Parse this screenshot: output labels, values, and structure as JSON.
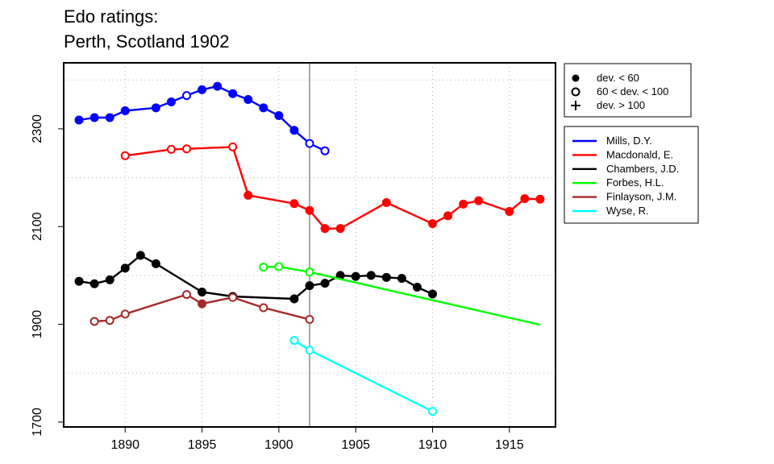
{
  "chart_data": {
    "type": "line",
    "title": "Edo ratings:",
    "subtitle": "Perth, Scotland 1902",
    "xlabel": "",
    "ylabel": "",
    "xlim": [
      1886,
      1918
    ],
    "ylim": [
      1690,
      2435
    ],
    "xticks": [
      1890,
      1895,
      1900,
      1905,
      1910,
      1915
    ],
    "yticks": [
      1700,
      1900,
      2100,
      2300
    ],
    "xgrid": [
      1890,
      1895,
      1900,
      1905,
      1910,
      1915
    ],
    "ygrid": [
      1800,
      2000,
      2200,
      2400
    ],
    "vline": 1902,
    "grid": true,
    "marker_legend": {
      "position": "top-right",
      "items": [
        {
          "marker": "filled",
          "label": "dev. < 60"
        },
        {
          "marker": "open",
          "label": "60 < dev. < 100"
        },
        {
          "marker": "plus",
          "label": "dev. > 100"
        }
      ]
    },
    "series_legend_position": "right",
    "series": [
      {
        "name": "Mills, D.Y.",
        "color": "#0000ff",
        "points": [
          {
            "x": 1887,
            "y": 2318,
            "m": "f"
          },
          {
            "x": 1888,
            "y": 2323,
            "m": "f"
          },
          {
            "x": 1889,
            "y": 2323,
            "m": "f"
          },
          {
            "x": 1890,
            "y": 2337,
            "m": "f"
          },
          {
            "x": 1892,
            "y": 2343,
            "m": "f"
          },
          {
            "x": 1893,
            "y": 2355,
            "m": "f"
          },
          {
            "x": 1894,
            "y": 2368,
            "m": "o"
          },
          {
            "x": 1895,
            "y": 2380,
            "m": "f"
          },
          {
            "x": 1896,
            "y": 2387,
            "m": "f"
          },
          {
            "x": 1897,
            "y": 2372,
            "m": "f"
          },
          {
            "x": 1898,
            "y": 2360,
            "m": "f"
          },
          {
            "x": 1899,
            "y": 2343,
            "m": "f"
          },
          {
            "x": 1900,
            "y": 2327,
            "m": "f"
          },
          {
            "x": 1901,
            "y": 2297,
            "m": "f"
          },
          {
            "x": 1902,
            "y": 2270,
            "m": "o"
          },
          {
            "x": 1903,
            "y": 2255,
            "m": "o"
          }
        ]
      },
      {
        "name": "Macdonald, E.",
        "color": "#ff0000",
        "points": [
          {
            "x": 1890,
            "y": 2245,
            "m": "o"
          },
          {
            "x": 1893,
            "y": 2258,
            "m": "o"
          },
          {
            "x": 1894,
            "y": 2259,
            "m": "o"
          },
          {
            "x": 1897,
            "y": 2263,
            "m": "o"
          },
          {
            "x": 1898,
            "y": 2164,
            "m": "f"
          },
          {
            "x": 1901,
            "y": 2147,
            "m": "f"
          },
          {
            "x": 1902,
            "y": 2133,
            "m": "f"
          },
          {
            "x": 1903,
            "y": 2096,
            "m": "f"
          },
          {
            "x": 1904,
            "y": 2096,
            "m": "f"
          },
          {
            "x": 1907,
            "y": 2149,
            "m": "f"
          },
          {
            "x": 1910,
            "y": 2106,
            "m": "f"
          },
          {
            "x": 1911,
            "y": 2122,
            "m": "f"
          },
          {
            "x": 1912,
            "y": 2146,
            "m": "f"
          },
          {
            "x": 1913,
            "y": 2153,
            "m": "f"
          },
          {
            "x": 1915,
            "y": 2131,
            "m": "f"
          },
          {
            "x": 1916,
            "y": 2157,
            "m": "f"
          },
          {
            "x": 1917,
            "y": 2156,
            "m": "f"
          }
        ]
      },
      {
        "name": "Chambers, J.D.",
        "color": "#000000",
        "points": [
          {
            "x": 1887,
            "y": 1988,
            "m": "f"
          },
          {
            "x": 1888,
            "y": 1983,
            "m": "f"
          },
          {
            "x": 1889,
            "y": 1991,
            "m": "f"
          },
          {
            "x": 1890,
            "y": 2015,
            "m": "f"
          },
          {
            "x": 1891,
            "y": 2041,
            "m": "f"
          },
          {
            "x": 1892,
            "y": 2024,
            "m": "f"
          },
          {
            "x": 1895,
            "y": 1966,
            "m": "f"
          },
          {
            "x": 1897,
            "y": 1957,
            "m": "f"
          },
          {
            "x": 1901,
            "y": 1952,
            "m": "f"
          },
          {
            "x": 1902,
            "y": 1979,
            "m": "f"
          },
          {
            "x": 1903,
            "y": 1984,
            "m": "f"
          },
          {
            "x": 1904,
            "y": 2000,
            "m": "f"
          },
          {
            "x": 1905,
            "y": 1998,
            "m": "f"
          },
          {
            "x": 1906,
            "y": 2000,
            "m": "f"
          },
          {
            "x": 1907,
            "y": 1996,
            "m": "f"
          },
          {
            "x": 1908,
            "y": 1994,
            "m": "f"
          },
          {
            "x": 1909,
            "y": 1976,
            "m": "f"
          },
          {
            "x": 1910,
            "y": 1962,
            "m": "f"
          }
        ]
      },
      {
        "name": "Forbes, H.L.",
        "color": "#00ff00",
        "points": [
          {
            "x": 1899,
            "y": 2017,
            "m": "o"
          },
          {
            "x": 1900,
            "y": 2018,
            "m": "o"
          },
          {
            "x": 1902,
            "y": 2007,
            "m": "o"
          },
          {
            "x": 1917,
            "y": 1899,
            "m": "n"
          }
        ]
      },
      {
        "name": "Finlayson, J.M.",
        "color": "#a52a2a",
        "points": [
          {
            "x": 1888,
            "y": 1906,
            "m": "o"
          },
          {
            "x": 1889,
            "y": 1908,
            "m": "o"
          },
          {
            "x": 1890,
            "y": 1921,
            "m": "o"
          },
          {
            "x": 1894,
            "y": 1961,
            "m": "o"
          },
          {
            "x": 1895,
            "y": 1942,
            "m": "f"
          },
          {
            "x": 1897,
            "y": 1955,
            "m": "o"
          },
          {
            "x": 1899,
            "y": 1934,
            "m": "o"
          },
          {
            "x": 1902,
            "y": 1910,
            "m": "o"
          }
        ]
      },
      {
        "name": "Wyse, R.",
        "color": "#00ffff",
        "points": [
          {
            "x": 1901,
            "y": 1867,
            "m": "o"
          },
          {
            "x": 1902,
            "y": 1847,
            "m": "o"
          },
          {
            "x": 1910,
            "y": 1722,
            "m": "o"
          }
        ]
      }
    ]
  }
}
